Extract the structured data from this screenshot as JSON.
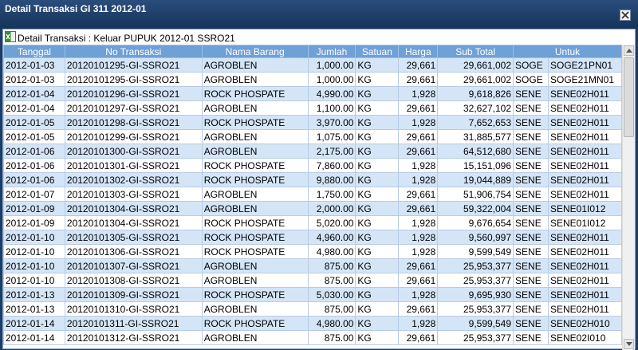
{
  "window": {
    "title": "Detail Transaksi GI 311 2012-01"
  },
  "panel": {
    "title": "Detail Transaksi : Keluar PUPUK 2012-01 SSRO21"
  },
  "columns": [
    "Tanggal",
    "No Transaksi",
    "Nama Barang",
    "Jumlah",
    "Satuan",
    "Harga",
    "Sub Total",
    "Untuk"
  ],
  "rows": [
    [
      "2012-01-03",
      "20120101295-GI-SSRO21",
      "AGROBLEN",
      "1,000.00",
      "KG",
      "29,661",
      "29,661,002",
      "SOGE",
      "SOGE21PN01"
    ],
    [
      "2012-01-03",
      "20120101295-GI-SSRO21",
      "AGROBLEN",
      "1,000.00",
      "KG",
      "29,661",
      "29,661,002",
      "SOGE",
      "SOGE21MN01"
    ],
    [
      "2012-01-04",
      "20120101296-GI-SSRO21",
      "ROCK PHOSPATE",
      "4,990.00",
      "KG",
      "1,928",
      "9,618,826",
      "SENE",
      "SENE02H011"
    ],
    [
      "2012-01-04",
      "20120101297-GI-SSRO21",
      "AGROBLEN",
      "1,100.00",
      "KG",
      "29,661",
      "32,627,102",
      "SENE",
      "SENE02H011"
    ],
    [
      "2012-01-05",
      "20120101298-GI-SSRO21",
      "ROCK PHOSPATE",
      "3,970.00",
      "KG",
      "1,928",
      "7,652,653",
      "SENE",
      "SENE02H011"
    ],
    [
      "2012-01-05",
      "20120101299-GI-SSRO21",
      "AGROBLEN",
      "1,075.00",
      "KG",
      "29,661",
      "31,885,577",
      "SENE",
      "SENE02H011"
    ],
    [
      "2012-01-06",
      "20120101300-GI-SSRO21",
      "AGROBLEN",
      "2,175.00",
      "KG",
      "29,661",
      "64,512,680",
      "SENE",
      "SENE02H011"
    ],
    [
      "2012-01-06",
      "20120101301-GI-SSRO21",
      "ROCK PHOSPATE",
      "7,860.00",
      "KG",
      "1,928",
      "15,151,096",
      "SENE",
      "SENE02H011"
    ],
    [
      "2012-01-06",
      "20120101302-GI-SSRO21",
      "ROCK PHOSPATE",
      "9,880.00",
      "KG",
      "1,928",
      "19,044,889",
      "SENE",
      "SENE02H011"
    ],
    [
      "2012-01-07",
      "20120101303-GI-SSRO21",
      "AGROBLEN",
      "1,750.00",
      "KG",
      "29,661",
      "51,906,754",
      "SENE",
      "SENE02H011"
    ],
    [
      "2012-01-09",
      "20120101304-GI-SSRO21",
      "AGROBLEN",
      "2,000.00",
      "KG",
      "29,661",
      "59,322,004",
      "SENE",
      "SENE01I012"
    ],
    [
      "2012-01-09",
      "20120101304-GI-SSRO21",
      "ROCK PHOSPATE",
      "5,020.00",
      "KG",
      "1,928",
      "9,676,654",
      "SENE",
      "SENE01I012"
    ],
    [
      "2012-01-10",
      "20120101305-GI-SSRO21",
      "ROCK PHOSPATE",
      "4,960.00",
      "KG",
      "1,928",
      "9,560,997",
      "SENE",
      "SENE02H011"
    ],
    [
      "2012-01-10",
      "20120101306-GI-SSRO21",
      "ROCK PHOSPATE",
      "4,980.00",
      "KG",
      "1,928",
      "9,599,549",
      "SENE",
      "SENE02H011"
    ],
    [
      "2012-01-10",
      "20120101307-GI-SSRO21",
      "AGROBLEN",
      "875.00",
      "KG",
      "29,661",
      "25,953,377",
      "SENE",
      "SENE02H011"
    ],
    [
      "2012-01-10",
      "20120101308-GI-SSRO21",
      "AGROBLEN",
      "875.00",
      "KG",
      "29,661",
      "25,953,377",
      "SENE",
      "SENE02H011"
    ],
    [
      "2012-01-13",
      "20120101309-GI-SSRO21",
      "ROCK PHOSPATE",
      "5,030.00",
      "KG",
      "1,928",
      "9,695,930",
      "SENE",
      "SENE02H011"
    ],
    [
      "2012-01-13",
      "20120101310-GI-SSRO21",
      "AGROBLEN",
      "875.00",
      "KG",
      "29,661",
      "25,953,377",
      "SENE",
      "SENE02H011"
    ],
    [
      "2012-01-14",
      "20120101311-GI-SSRO21",
      "ROCK PHOSPATE",
      "4,980.00",
      "KG",
      "1,928",
      "9,599,549",
      "SENE",
      "SENE02H010"
    ],
    [
      "2012-01-14",
      "20120101312-GI-SSRO21",
      "AGROBLEN",
      "875.00",
      "KG",
      "29,661",
      "25,953,377",
      "SENE",
      "SENE02I010"
    ]
  ]
}
